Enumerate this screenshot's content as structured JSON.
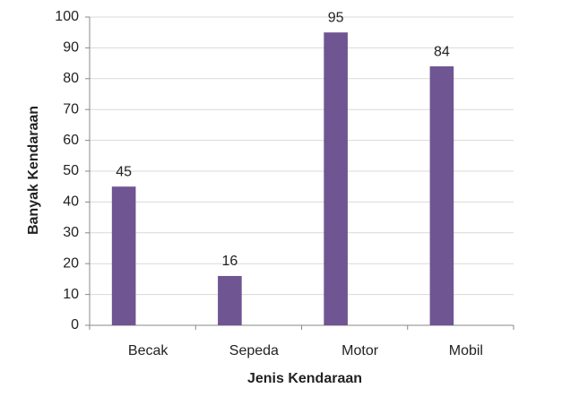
{
  "chart_data": {
    "type": "bar",
    "x_label": "Jenis Kendaraan",
    "y_label": "Banyak Kendaraan",
    "categories": [
      "Becak",
      "Sepeda",
      "Motor",
      "Mobil"
    ],
    "values": [
      45,
      16,
      95,
      84
    ],
    "color": "#6f5592",
    "ylim": [
      0,
      100
    ],
    "yticks": [
      0,
      10,
      20,
      30,
      40,
      50,
      60,
      70,
      80,
      90,
      100
    ],
    "grid": true,
    "data_labels": true
  }
}
